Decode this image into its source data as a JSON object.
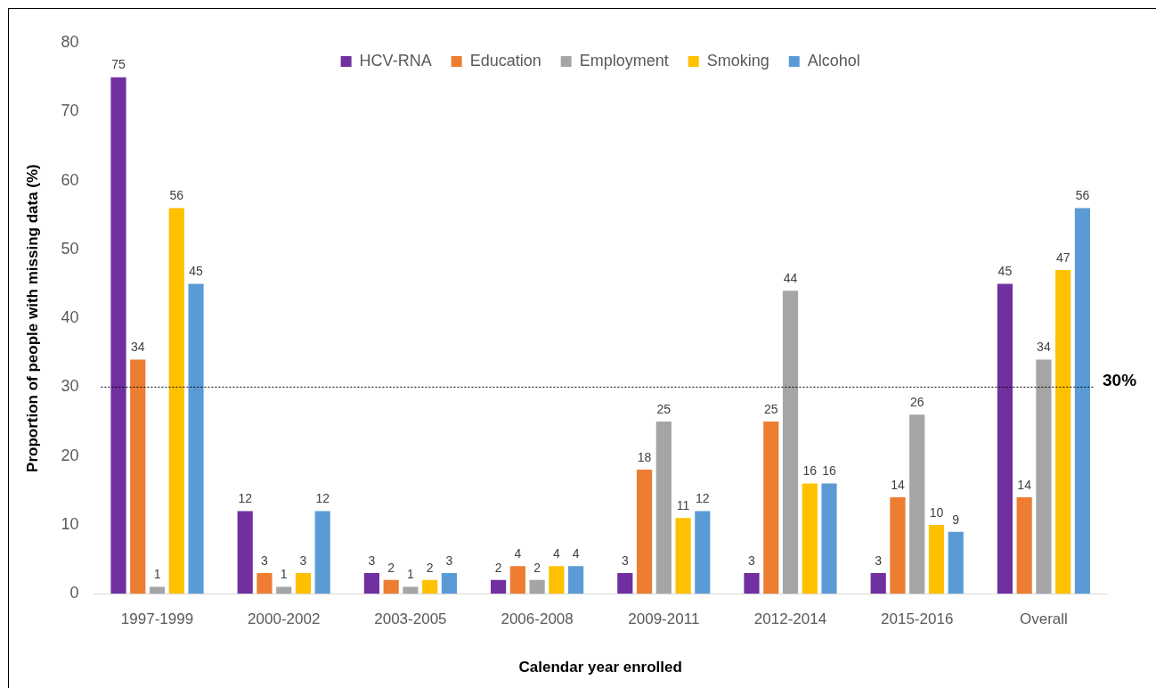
{
  "chart_data": {
    "type": "bar",
    "xlabel": "Calendar year enrolled",
    "ylabel": "Proportion of people with missing data (%)",
    "categories": [
      "1997-1999",
      "2000-2002",
      "2003-2005",
      "2006-2008",
      "2009-2011",
      "2012-2014",
      "2015-2016",
      "Overall"
    ],
    "series": [
      {
        "name": "HCV-RNA",
        "color": "#7030a0",
        "values": [
          75,
          12,
          3,
          2,
          3,
          3,
          3,
          45
        ]
      },
      {
        "name": "Education",
        "color": "#ed7d31",
        "values": [
          34,
          3,
          2,
          4,
          18,
          25,
          14,
          14
        ]
      },
      {
        "name": "Employment",
        "color": "#a5a5a5",
        "values": [
          1,
          1,
          1,
          2,
          25,
          44,
          26,
          34
        ]
      },
      {
        "name": "Smoking",
        "color": "#ffc000",
        "values": [
          56,
          3,
          2,
          4,
          11,
          16,
          10,
          47
        ]
      },
      {
        "name": "Alcohol",
        "color": "#5b9bd5",
        "values": [
          45,
          12,
          3,
          4,
          12,
          16,
          9,
          56
        ]
      }
    ],
    "ylim": [
      0,
      80
    ],
    "yticks": [
      0,
      10,
      20,
      30,
      40,
      50,
      60,
      70,
      80
    ],
    "grid": false,
    "legend": "top",
    "data_labels": true,
    "ref_lines": [
      {
        "axis": "y",
        "value": 30,
        "label": "30%",
        "color": "#000000",
        "line_style": "dotted"
      }
    ]
  }
}
